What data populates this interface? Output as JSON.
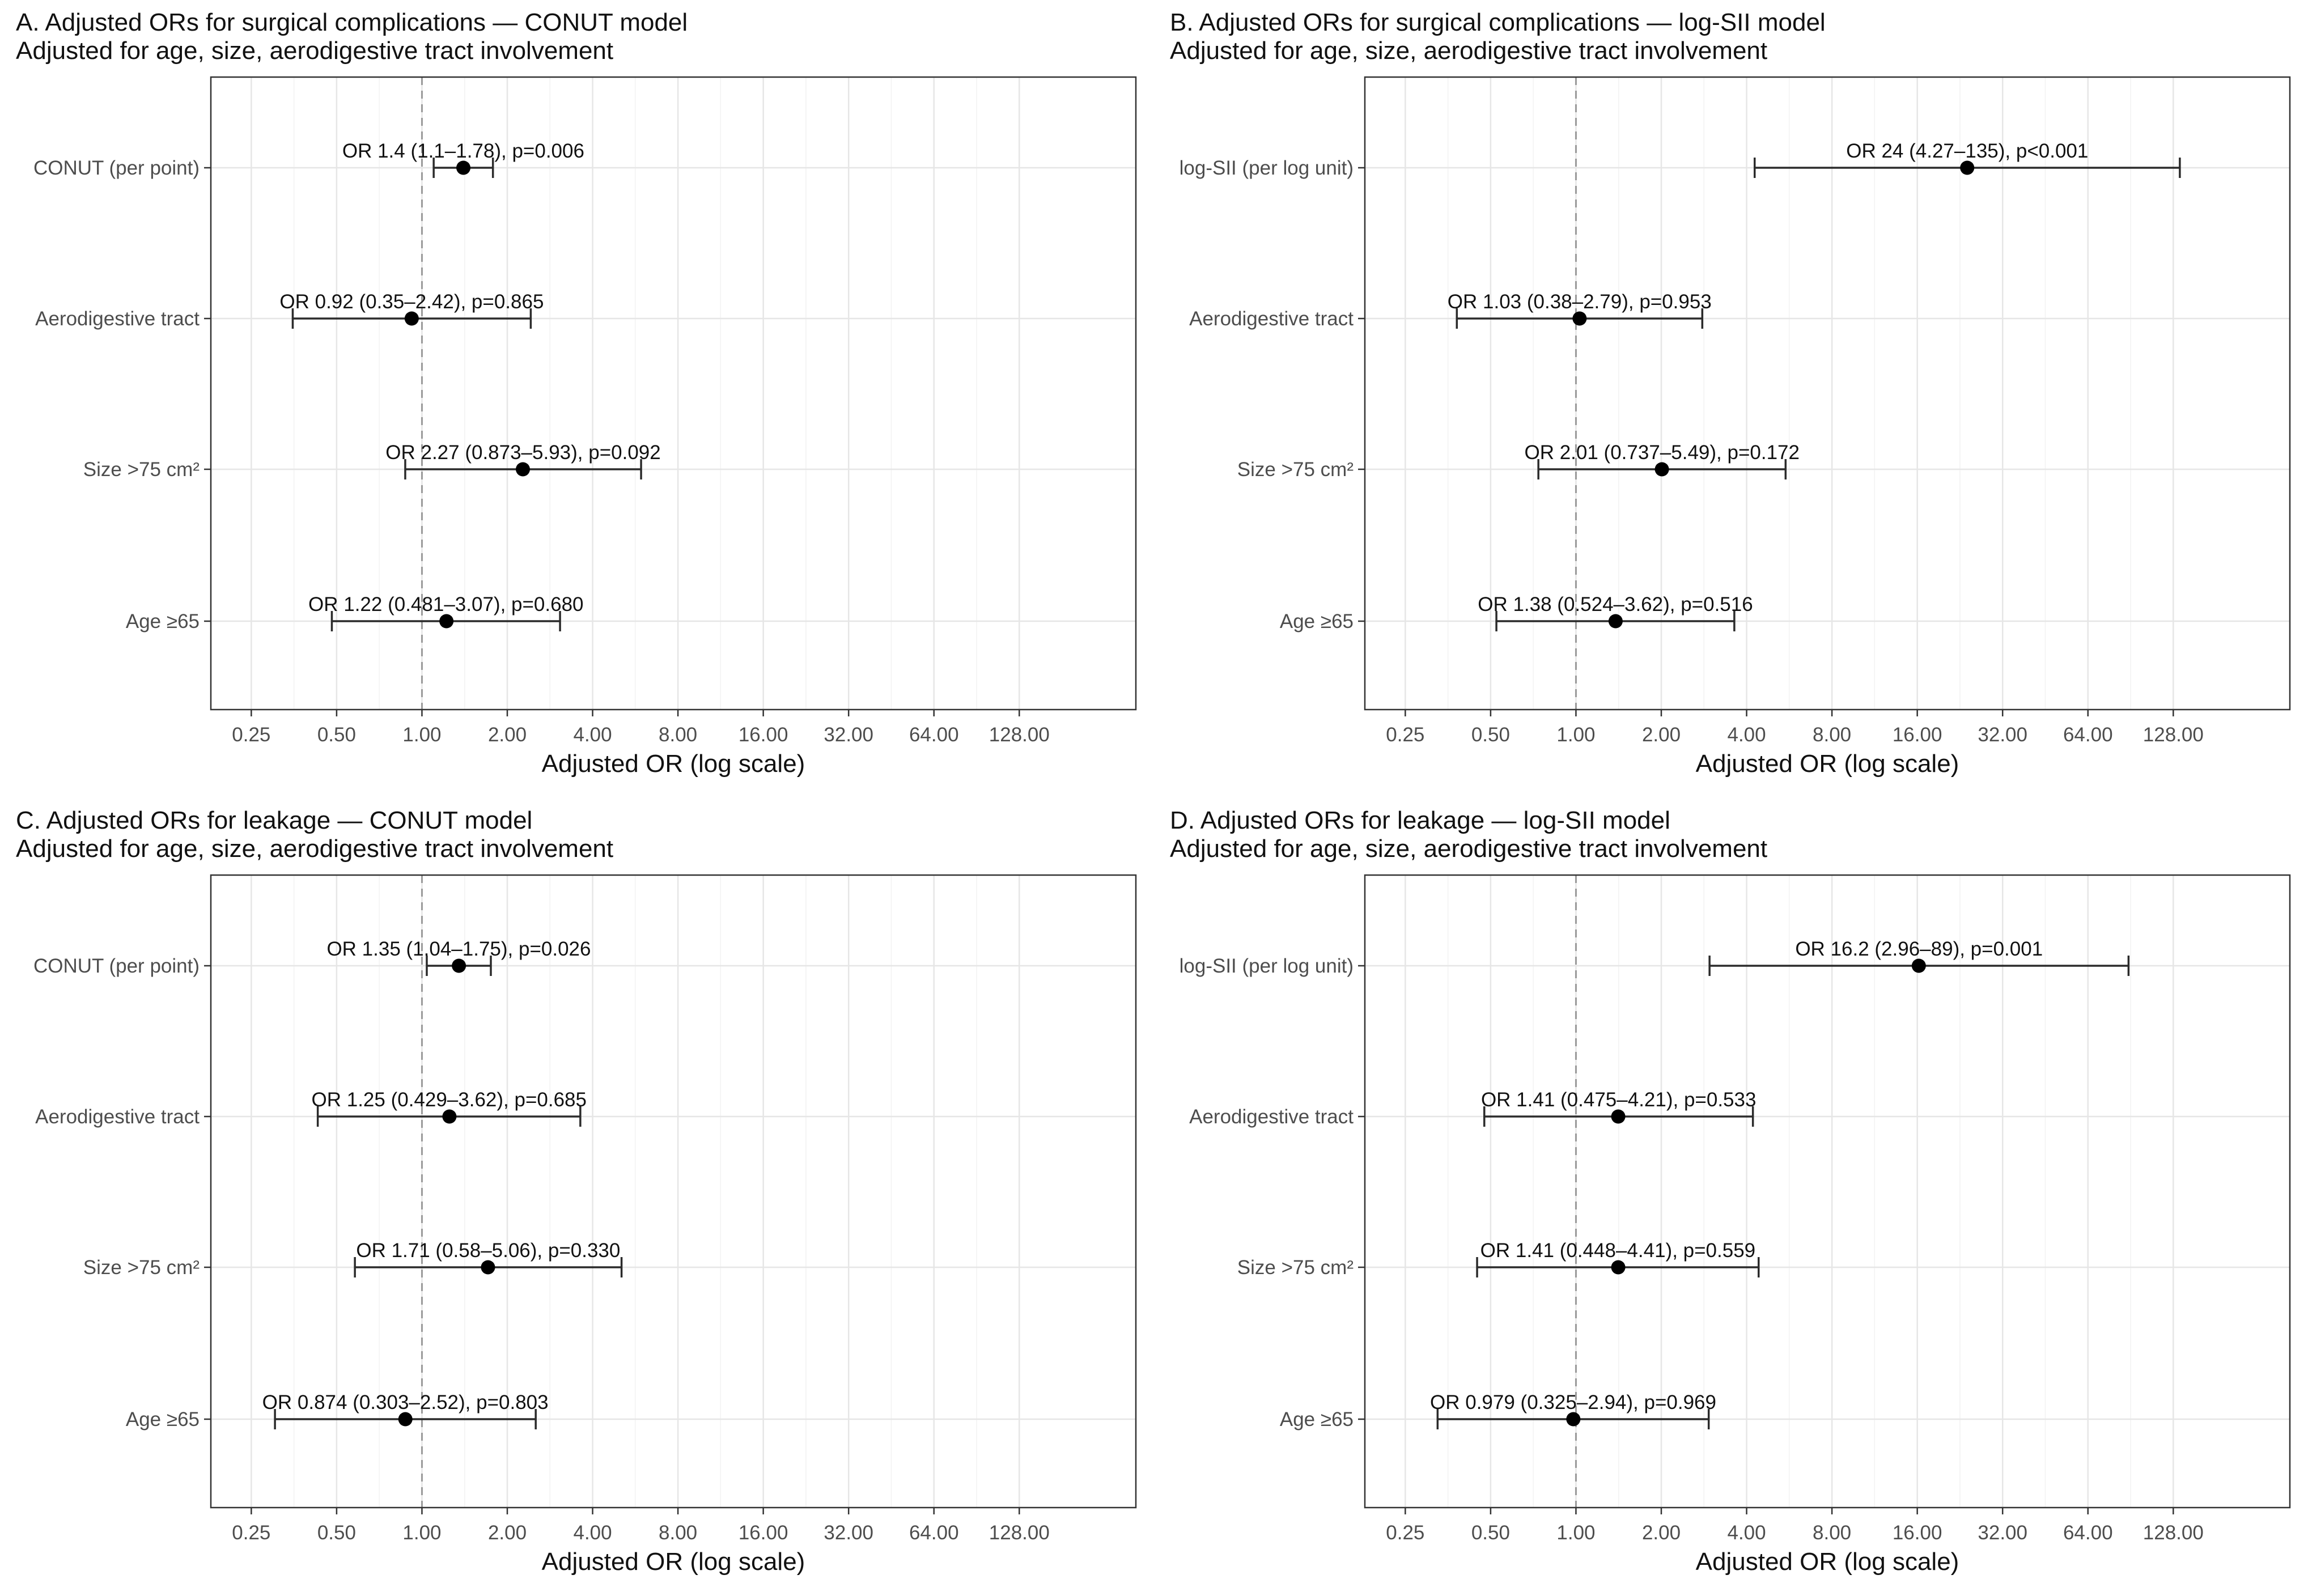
{
  "chart_data": [
    {
      "type": "forest",
      "title": "A. Adjusted ORs for surgical complications — CONUT model",
      "subtitle": "Adjusted for age, size, aerodigestive tract involvement",
      "xlabel": "Adjusted OR (log scale)",
      "x_scale": "log2",
      "xlim": [
        0.18,
        330
      ],
      "x_ticks": [
        0.25,
        0.5,
        1,
        2,
        4,
        8,
        16,
        32,
        64,
        128
      ],
      "x_tick_labels": [
        "0.25",
        "0.50",
        "1.00",
        "2.00",
        "4.00",
        "8.00",
        "16.00",
        "32.00",
        "64.00",
        "128.00"
      ],
      "reference_line": 1,
      "rows": [
        {
          "label": "CONUT (per point)",
          "or": 1.4,
          "lo": 1.1,
          "hi": 1.78,
          "annotation": "OR 1.4 (1.1–1.78), p=0.006"
        },
        {
          "label": "Aerodigestive tract",
          "or": 0.92,
          "lo": 0.35,
          "hi": 2.42,
          "annotation": "OR 0.92 (0.35–2.42), p=0.865"
        },
        {
          "label": "Size >75 cm²",
          "or": 2.27,
          "lo": 0.873,
          "hi": 5.93,
          "annotation": "OR 2.27 (0.873–5.93), p=0.092"
        },
        {
          "label": "Age ≥65",
          "or": 1.22,
          "lo": 0.481,
          "hi": 3.07,
          "annotation": "OR 1.22 (0.481–3.07), p=0.680"
        }
      ]
    },
    {
      "type": "forest",
      "title": "B. Adjusted ORs for surgical complications — log-SII model",
      "subtitle": "Adjusted for age, size, aerodigestive tract involvement",
      "xlabel": "Adjusted OR (log scale)",
      "x_scale": "log2",
      "xlim": [
        0.18,
        330
      ],
      "x_ticks": [
        0.25,
        0.5,
        1,
        2,
        4,
        8,
        16,
        32,
        64,
        128
      ],
      "x_tick_labels": [
        "0.25",
        "0.50",
        "1.00",
        "2.00",
        "4.00",
        "8.00",
        "16.00",
        "32.00",
        "64.00",
        "128.00"
      ],
      "reference_line": 1,
      "rows": [
        {
          "label": "log-SII (per log unit)",
          "or": 24,
          "lo": 4.27,
          "hi": 135,
          "annotation": "OR 24 (4.27–135), p<0.001"
        },
        {
          "label": "Aerodigestive tract",
          "or": 1.03,
          "lo": 0.38,
          "hi": 2.79,
          "annotation": "OR 1.03 (0.38–2.79), p=0.953"
        },
        {
          "label": "Size >75 cm²",
          "or": 2.01,
          "lo": 0.737,
          "hi": 5.49,
          "annotation": "OR 2.01 (0.737–5.49), p=0.172"
        },
        {
          "label": "Age ≥65",
          "or": 1.38,
          "lo": 0.524,
          "hi": 3.62,
          "annotation": "OR 1.38 (0.524–3.62), p=0.516"
        }
      ]
    },
    {
      "type": "forest",
      "title": "C. Adjusted ORs for leakage — CONUT model",
      "subtitle": "Adjusted for age, size, aerodigestive tract involvement",
      "xlabel": "Adjusted OR (log scale)",
      "x_scale": "log2",
      "xlim": [
        0.18,
        330
      ],
      "x_ticks": [
        0.25,
        0.5,
        1,
        2,
        4,
        8,
        16,
        32,
        64,
        128
      ],
      "x_tick_labels": [
        "0.25",
        "0.50",
        "1.00",
        "2.00",
        "4.00",
        "8.00",
        "16.00",
        "32.00",
        "64.00",
        "128.00"
      ],
      "reference_line": 1,
      "rows": [
        {
          "label": "CONUT (per point)",
          "or": 1.35,
          "lo": 1.04,
          "hi": 1.75,
          "annotation": "OR 1.35 (1.04–1.75), p=0.026"
        },
        {
          "label": "Aerodigestive tract",
          "or": 1.25,
          "lo": 0.429,
          "hi": 3.62,
          "annotation": "OR 1.25 (0.429–3.62), p=0.685"
        },
        {
          "label": "Size >75 cm²",
          "or": 1.71,
          "lo": 0.58,
          "hi": 5.06,
          "annotation": "OR 1.71 (0.58–5.06), p=0.330"
        },
        {
          "label": "Age ≥65",
          "or": 0.874,
          "lo": 0.303,
          "hi": 2.52,
          "annotation": "OR 0.874 (0.303–2.52), p=0.803"
        }
      ]
    },
    {
      "type": "forest",
      "title": "D. Adjusted ORs for leakage — log-SII model",
      "subtitle": "Adjusted for age, size, aerodigestive tract involvement",
      "xlabel": "Adjusted OR (log scale)",
      "x_scale": "log2",
      "xlim": [
        0.18,
        330
      ],
      "x_ticks": [
        0.25,
        0.5,
        1,
        2,
        4,
        8,
        16,
        32,
        64,
        128
      ],
      "x_tick_labels": [
        "0.25",
        "0.50",
        "1.00",
        "2.00",
        "4.00",
        "8.00",
        "16.00",
        "32.00",
        "64.00",
        "128.00"
      ],
      "reference_line": 1,
      "rows": [
        {
          "label": "log-SII (per log unit)",
          "or": 16.2,
          "lo": 2.96,
          "hi": 89,
          "annotation": "OR 16.2 (2.96–89), p=0.001"
        },
        {
          "label": "Aerodigestive tract",
          "or": 1.41,
          "lo": 0.475,
          "hi": 4.21,
          "annotation": "OR 1.41 (0.475–4.21), p=0.533"
        },
        {
          "label": "Size >75 cm²",
          "or": 1.41,
          "lo": 0.448,
          "hi": 4.41,
          "annotation": "OR 1.41 (0.448–4.41), p=0.559"
        },
        {
          "label": "Age ≥65",
          "or": 0.979,
          "lo": 0.325,
          "hi": 2.94,
          "annotation": "OR 0.979 (0.325–2.94), p=0.969"
        }
      ]
    }
  ]
}
